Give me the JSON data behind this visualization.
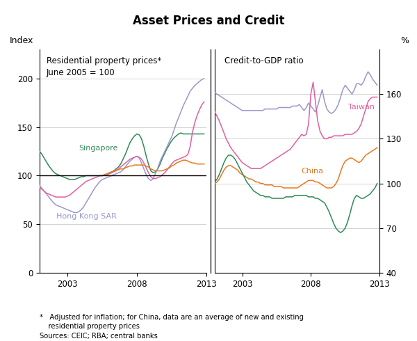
{
  "title": "Asset Prices and Credit",
  "left_panel_title": "Residential property prices*\nJune 2005 = 100",
  "right_panel_title": "Credit-to-GDP ratio",
  "left_ylabel": "Index",
  "right_ylabel": "%",
  "footnote": "*   Adjusted for inflation; for China, data are an average of new and existing\n    residential property prices\nSources: CEIC; RBA; central banks",
  "left_ylim": [
    0,
    230
  ],
  "left_yticks": [
    0,
    50,
    100,
    150,
    200
  ],
  "right_ylim": [
    40,
    190
  ],
  "right_yticks": [
    40,
    70,
    100,
    130,
    160
  ],
  "colors": {
    "sg_left": "#2e8b57",
    "hk_left": "#9999cc",
    "pink_left": "#e060a0",
    "orange_left": "#e87820",
    "taiwan_right": "#9999cc",
    "pink_right": "#e060a0",
    "china_right": "#e87820",
    "korea_right": "#2e8b57"
  },
  "left_panel": {
    "singapore": {
      "x": [
        2001.0,
        2001.17,
        2001.33,
        2001.5,
        2001.67,
        2001.83,
        2002.0,
        2002.17,
        2002.33,
        2002.5,
        2002.67,
        2002.83,
        2003.0,
        2003.17,
        2003.33,
        2003.5,
        2003.67,
        2003.83,
        2004.0,
        2004.17,
        2004.33,
        2004.5,
        2004.67,
        2004.83,
        2005.0,
        2005.17,
        2005.33,
        2005.5,
        2005.67,
        2005.83,
        2006.0,
        2006.17,
        2006.33,
        2006.5,
        2006.67,
        2006.83,
        2007.0,
        2007.17,
        2007.33,
        2007.5,
        2007.67,
        2007.83,
        2008.0,
        2008.17,
        2008.33,
        2008.5,
        2008.67,
        2008.83,
        2009.0,
        2009.17,
        2009.33,
        2009.5,
        2009.67,
        2009.83,
        2010.0,
        2010.17,
        2010.33,
        2010.5,
        2010.67,
        2010.83,
        2011.0,
        2011.17,
        2011.33,
        2011.5,
        2011.67,
        2011.83,
        2012.0,
        2012.17,
        2012.33,
        2012.5,
        2012.67,
        2012.83
      ],
      "y": [
        125,
        122,
        118,
        114,
        110,
        107,
        104,
        102,
        101,
        100,
        99,
        98,
        97,
        96,
        96,
        96,
        97,
        98,
        99,
        99,
        100,
        100,
        100,
        100,
        100,
        100,
        100,
        100,
        101,
        101,
        102,
        103,
        105,
        107,
        109,
        112,
        117,
        122,
        128,
        134,
        138,
        141,
        143,
        142,
        138,
        130,
        120,
        112,
        105,
        103,
        104,
        107,
        112,
        118,
        123,
        128,
        132,
        136,
        139,
        141,
        143,
        144,
        143,
        143,
        143,
        143,
        143,
        143,
        143,
        143,
        143,
        143
      ]
    },
    "hong_kong": {
      "x": [
        2001.0,
        2001.17,
        2001.33,
        2001.5,
        2001.67,
        2001.83,
        2002.0,
        2002.17,
        2002.33,
        2002.5,
        2002.67,
        2002.83,
        2003.0,
        2003.17,
        2003.33,
        2003.5,
        2003.67,
        2003.83,
        2004.0,
        2004.17,
        2004.33,
        2004.5,
        2004.67,
        2004.83,
        2005.0,
        2005.17,
        2005.33,
        2005.5,
        2005.67,
        2005.83,
        2006.0,
        2006.17,
        2006.33,
        2006.5,
        2006.67,
        2006.83,
        2007.0,
        2007.17,
        2007.33,
        2007.5,
        2007.67,
        2007.83,
        2008.0,
        2008.17,
        2008.33,
        2008.5,
        2008.67,
        2008.83,
        2009.0,
        2009.17,
        2009.33,
        2009.5,
        2009.67,
        2009.83,
        2010.0,
        2010.17,
        2010.33,
        2010.5,
        2010.67,
        2010.83,
        2011.0,
        2011.17,
        2011.33,
        2011.5,
        2011.67,
        2011.83,
        2012.0,
        2012.17,
        2012.33,
        2012.5,
        2012.67,
        2012.83
      ],
      "y": [
        90,
        87,
        84,
        81,
        78,
        75,
        72,
        70,
        69,
        68,
        67,
        66,
        65,
        64,
        63,
        62,
        62,
        63,
        65,
        68,
        72,
        76,
        80,
        84,
        88,
        91,
        94,
        96,
        97,
        98,
        99,
        100,
        101,
        102,
        103,
        104,
        106,
        109,
        112,
        115,
        117,
        119,
        120,
        118,
        113,
        107,
        101,
        97,
        95,
        97,
        102,
        108,
        115,
        120,
        125,
        130,
        135,
        140,
        147,
        154,
        160,
        166,
        172,
        177,
        182,
        187,
        190,
        193,
        195,
        197,
        199,
        200
      ]
    },
    "pink": {
      "x": [
        2001.0,
        2001.17,
        2001.33,
        2001.5,
        2001.67,
        2001.83,
        2002.0,
        2002.17,
        2002.33,
        2002.5,
        2002.67,
        2002.83,
        2003.0,
        2003.17,
        2003.33,
        2003.5,
        2003.67,
        2003.83,
        2004.0,
        2004.17,
        2004.33,
        2004.5,
        2004.67,
        2004.83,
        2005.0,
        2005.17,
        2005.33,
        2005.5,
        2005.67,
        2005.83,
        2006.0,
        2006.17,
        2006.33,
        2006.5,
        2006.67,
        2006.83,
        2007.0,
        2007.17,
        2007.33,
        2007.5,
        2007.67,
        2007.83,
        2008.0,
        2008.17,
        2008.33,
        2008.5,
        2008.67,
        2008.83,
        2009.0,
        2009.17,
        2009.33,
        2009.5,
        2009.67,
        2009.83,
        2010.0,
        2010.17,
        2010.33,
        2010.5,
        2010.67,
        2010.83,
        2011.0,
        2011.17,
        2011.33,
        2011.5,
        2011.67,
        2011.83,
        2012.0,
        2012.17,
        2012.33,
        2012.5,
        2012.67,
        2012.83
      ],
      "y": [
        88,
        86,
        84,
        82,
        81,
        80,
        79,
        78,
        78,
        78,
        78,
        78,
        79,
        80,
        82,
        84,
        86,
        88,
        90,
        92,
        94,
        95,
        96,
        97,
        98,
        99,
        100,
        100,
        101,
        101,
        102,
        103,
        104,
        105,
        107,
        109,
        111,
        113,
        115,
        117,
        118,
        119,
        120,
        119,
        117,
        113,
        108,
        103,
        99,
        97,
        97,
        98,
        99,
        101,
        103,
        106,
        109,
        112,
        115,
        116,
        117,
        118,
        119,
        120,
        122,
        130,
        145,
        155,
        162,
        168,
        173,
        176
      ]
    },
    "orange": {
      "x": [
        2005.5,
        2005.67,
        2005.83,
        2006.0,
        2006.17,
        2006.33,
        2006.5,
        2006.67,
        2006.83,
        2007.0,
        2007.17,
        2007.33,
        2007.5,
        2007.67,
        2007.83,
        2008.0,
        2008.17,
        2008.33,
        2008.5,
        2008.67,
        2008.83,
        2009.0,
        2009.17,
        2009.33,
        2009.5,
        2009.67,
        2009.83,
        2010.0,
        2010.17,
        2010.33,
        2010.5,
        2010.67,
        2010.83,
        2011.0,
        2011.17,
        2011.33,
        2011.5,
        2011.67,
        2011.83,
        2012.0,
        2012.17,
        2012.33,
        2012.5,
        2012.67,
        2012.83
      ],
      "y": [
        100,
        101,
        102,
        103,
        104,
        105,
        106,
        106,
        107,
        107,
        108,
        109,
        110,
        110,
        111,
        111,
        111,
        111,
        111,
        110,
        109,
        107,
        106,
        105,
        105,
        105,
        105,
        106,
        107,
        108,
        110,
        111,
        113,
        114,
        115,
        116,
        116,
        115,
        114,
        113,
        113,
        112,
        112,
        112,
        112
      ]
    }
  },
  "right_panel": {
    "taiwan": {
      "x": [
        2001.0,
        2001.17,
        2001.33,
        2001.5,
        2001.67,
        2001.83,
        2002.0,
        2002.17,
        2002.33,
        2002.5,
        2002.67,
        2002.83,
        2003.0,
        2003.17,
        2003.33,
        2003.5,
        2003.67,
        2003.83,
        2004.0,
        2004.17,
        2004.33,
        2004.5,
        2004.67,
        2004.83,
        2005.0,
        2005.17,
        2005.33,
        2005.5,
        2005.67,
        2005.83,
        2006.0,
        2006.17,
        2006.33,
        2006.5,
        2006.67,
        2006.83,
        2007.0,
        2007.17,
        2007.33,
        2007.5,
        2007.67,
        2007.83,
        2008.0,
        2008.17,
        2008.33,
        2008.5,
        2008.67,
        2008.83,
        2009.0,
        2009.17,
        2009.33,
        2009.5,
        2009.67,
        2009.83,
        2010.0,
        2010.17,
        2010.33,
        2010.5,
        2010.67,
        2010.83,
        2011.0,
        2011.17,
        2011.33,
        2011.5,
        2011.67,
        2011.83,
        2012.0,
        2012.17,
        2012.33,
        2012.5,
        2012.67,
        2012.83
      ],
      "y": [
        161,
        160,
        159,
        158,
        157,
        156,
        155,
        154,
        153,
        152,
        151,
        150,
        149,
        149,
        149,
        149,
        149,
        149,
        149,
        149,
        149,
        149,
        150,
        150,
        150,
        150,
        150,
        150,
        151,
        151,
        151,
        151,
        151,
        151,
        152,
        152,
        152,
        153,
        151,
        149,
        151,
        154,
        152,
        150,
        148,
        152,
        158,
        163,
        155,
        150,
        148,
        147,
        148,
        150,
        153,
        158,
        163,
        166,
        164,
        162,
        160,
        163,
        167,
        167,
        166,
        168,
        172,
        175,
        173,
        170,
        168,
        166
      ]
    },
    "pink_right": {
      "x": [
        2001.0,
        2001.17,
        2001.33,
        2001.5,
        2001.67,
        2001.83,
        2002.0,
        2002.17,
        2002.33,
        2002.5,
        2002.67,
        2002.83,
        2003.0,
        2003.17,
        2003.33,
        2003.5,
        2003.67,
        2003.83,
        2004.0,
        2004.17,
        2004.33,
        2004.5,
        2004.67,
        2004.83,
        2005.0,
        2005.17,
        2005.33,
        2005.5,
        2005.67,
        2005.83,
        2006.0,
        2006.17,
        2006.33,
        2006.5,
        2006.67,
        2006.83,
        2007.0,
        2007.17,
        2007.33,
        2007.5,
        2007.67,
        2007.83,
        2008.0,
        2008.17,
        2008.33,
        2008.5,
        2008.67,
        2008.83,
        2009.0,
        2009.17,
        2009.33,
        2009.5,
        2009.67,
        2009.83,
        2010.0,
        2010.17,
        2010.33,
        2010.5,
        2010.67,
        2010.83,
        2011.0,
        2011.17,
        2011.33,
        2011.5,
        2011.67,
        2011.83,
        2012.0,
        2012.17,
        2012.33,
        2012.5,
        2012.67,
        2012.83
      ],
      "y": [
        148,
        145,
        142,
        138,
        134,
        130,
        127,
        124,
        122,
        120,
        118,
        116,
        114,
        113,
        112,
        111,
        110,
        110,
        110,
        110,
        110,
        111,
        112,
        113,
        114,
        115,
        116,
        117,
        118,
        119,
        120,
        121,
        122,
        123,
        125,
        127,
        129,
        131,
        133,
        132,
        133,
        140,
        160,
        168,
        155,
        142,
        135,
        132,
        130,
        130,
        131,
        131,
        132,
        132,
        132,
        132,
        132,
        133,
        133,
        133,
        133,
        134,
        135,
        137,
        140,
        145,
        150,
        155,
        157,
        158,
        158,
        158
      ]
    },
    "china": {
      "x": [
        2001.0,
        2001.17,
        2001.33,
        2001.5,
        2001.67,
        2001.83,
        2002.0,
        2002.17,
        2002.33,
        2002.5,
        2002.67,
        2002.83,
        2003.0,
        2003.17,
        2003.33,
        2003.5,
        2003.67,
        2003.83,
        2004.0,
        2004.17,
        2004.33,
        2004.5,
        2004.67,
        2004.83,
        2005.0,
        2005.17,
        2005.33,
        2005.5,
        2005.67,
        2005.83,
        2006.0,
        2006.17,
        2006.33,
        2006.5,
        2006.67,
        2006.83,
        2007.0,
        2007.17,
        2007.33,
        2007.5,
        2007.67,
        2007.83,
        2008.0,
        2008.17,
        2008.33,
        2008.5,
        2008.67,
        2008.83,
        2009.0,
        2009.17,
        2009.33,
        2009.5,
        2009.67,
        2009.83,
        2010.0,
        2010.17,
        2010.33,
        2010.5,
        2010.67,
        2010.83,
        2011.0,
        2011.17,
        2011.33,
        2011.5,
        2011.67,
        2011.83,
        2012.0,
        2012.17,
        2012.33,
        2012.5,
        2012.67,
        2012.83
      ],
      "y": [
        100,
        101,
        103,
        106,
        109,
        111,
        112,
        112,
        111,
        110,
        109,
        107,
        106,
        105,
        104,
        103,
        103,
        102,
        101,
        101,
        100,
        100,
        99,
        99,
        99,
        99,
        98,
        98,
        98,
        98,
        97,
        97,
        97,
        97,
        97,
        97,
        97,
        98,
        99,
        100,
        101,
        102,
        102,
        102,
        101,
        101,
        100,
        99,
        98,
        97,
        97,
        97,
        98,
        100,
        103,
        108,
        112,
        115,
        116,
        117,
        117,
        116,
        115,
        114,
        115,
        117,
        119,
        120,
        121,
        122,
        123,
        124
      ]
    },
    "korea": {
      "x": [
        2001.0,
        2001.17,
        2001.33,
        2001.5,
        2001.67,
        2001.83,
        2002.0,
        2002.17,
        2002.33,
        2002.5,
        2002.67,
        2002.83,
        2003.0,
        2003.17,
        2003.33,
        2003.5,
        2003.67,
        2003.83,
        2004.0,
        2004.17,
        2004.33,
        2004.5,
        2004.67,
        2004.83,
        2005.0,
        2005.17,
        2005.33,
        2005.5,
        2005.67,
        2005.83,
        2006.0,
        2006.17,
        2006.33,
        2006.5,
        2006.67,
        2006.83,
        2007.0,
        2007.17,
        2007.33,
        2007.5,
        2007.67,
        2007.83,
        2008.0,
        2008.17,
        2008.33,
        2008.5,
        2008.67,
        2008.83,
        2009.0,
        2009.17,
        2009.33,
        2009.5,
        2009.67,
        2009.83,
        2010.0,
        2010.17,
        2010.33,
        2010.5,
        2010.67,
        2010.83,
        2011.0,
        2011.17,
        2011.33,
        2011.5,
        2011.67,
        2011.83,
        2012.0,
        2012.17,
        2012.33,
        2012.5,
        2012.67,
        2012.83
      ],
      "y": [
        101,
        103,
        106,
        110,
        114,
        117,
        119,
        119,
        118,
        116,
        113,
        110,
        107,
        104,
        101,
        99,
        97,
        95,
        94,
        93,
        92,
        92,
        91,
        91,
        91,
        90,
        90,
        90,
        90,
        90,
        90,
        91,
        91,
        91,
        91,
        92,
        92,
        92,
        92,
        92,
        92,
        91,
        91,
        91,
        90,
        90,
        89,
        88,
        87,
        84,
        81,
        77,
        73,
        70,
        68,
        67,
        68,
        70,
        74,
        79,
        85,
        90,
        92,
        91,
        90,
        90,
        91,
        92,
        93,
        95,
        97,
        100
      ]
    }
  }
}
